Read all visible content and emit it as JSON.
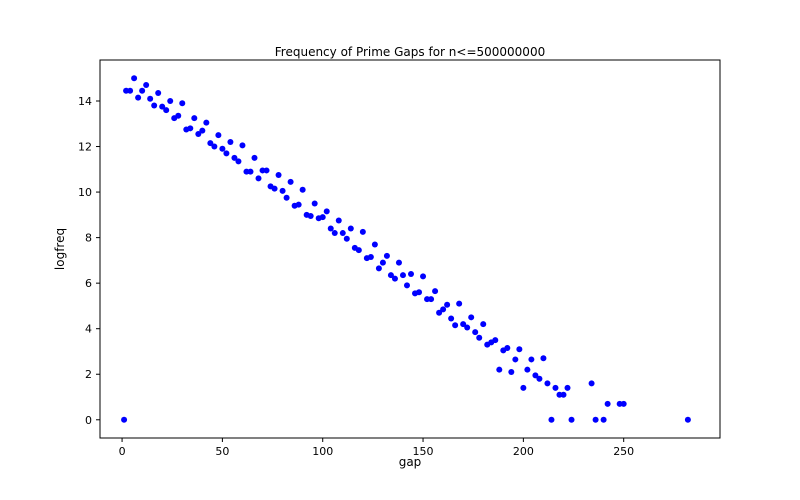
{
  "chart_data": {
    "type": "scatter",
    "title": "Frequency of Prime Gaps for n<=500000000",
    "xlabel": "gap",
    "ylabel": "logfreq",
    "xlim": [
      -11,
      298
    ],
    "ylim": [
      -0.8,
      15.8
    ],
    "xticks": [
      0,
      50,
      100,
      150,
      200,
      250
    ],
    "yticks": [
      0,
      2,
      4,
      6,
      8,
      10,
      12,
      14
    ],
    "grid": false,
    "marker_color": "#0000ff",
    "points": [
      [
        1,
        0.0
      ],
      [
        2,
        14.45
      ],
      [
        4,
        14.45
      ],
      [
        6,
        15.0
      ],
      [
        8,
        14.15
      ],
      [
        10,
        14.45
      ],
      [
        12,
        14.7
      ],
      [
        14,
        14.1
      ],
      [
        16,
        13.8
      ],
      [
        18,
        14.35
      ],
      [
        20,
        13.75
      ],
      [
        22,
        13.6
      ],
      [
        24,
        14.0
      ],
      [
        26,
        13.25
      ],
      [
        28,
        13.35
      ],
      [
        30,
        13.9
      ],
      [
        32,
        12.75
      ],
      [
        34,
        12.8
      ],
      [
        36,
        13.25
      ],
      [
        38,
        12.55
      ],
      [
        40,
        12.7
      ],
      [
        42,
        13.05
      ],
      [
        44,
        12.15
      ],
      [
        46,
        12.0
      ],
      [
        48,
        12.5
      ],
      [
        50,
        11.9
      ],
      [
        52,
        11.7
      ],
      [
        54,
        12.2
      ],
      [
        56,
        11.5
      ],
      [
        58,
        11.35
      ],
      [
        60,
        12.05
      ],
      [
        62,
        10.9
      ],
      [
        64,
        10.9
      ],
      [
        66,
        11.5
      ],
      [
        68,
        10.6
      ],
      [
        70,
        10.95
      ],
      [
        72,
        10.95
      ],
      [
        74,
        10.25
      ],
      [
        76,
        10.15
      ],
      [
        78,
        10.75
      ],
      [
        80,
        10.05
      ],
      [
        82,
        9.75
      ],
      [
        84,
        10.45
      ],
      [
        86,
        9.4
      ],
      [
        88,
        9.45
      ],
      [
        90,
        10.1
      ],
      [
        92,
        9.0
      ],
      [
        94,
        8.95
      ],
      [
        96,
        9.5
      ],
      [
        98,
        8.85
      ],
      [
        100,
        8.9
      ],
      [
        102,
        9.15
      ],
      [
        104,
        8.4
      ],
      [
        106,
        8.2
      ],
      [
        108,
        8.75
      ],
      [
        110,
        8.2
      ],
      [
        112,
        7.95
      ],
      [
        114,
        8.4
      ],
      [
        116,
        7.55
      ],
      [
        118,
        7.45
      ],
      [
        120,
        8.25
      ],
      [
        122,
        7.1
      ],
      [
        124,
        7.15
      ],
      [
        126,
        7.7
      ],
      [
        128,
        6.65
      ],
      [
        130,
        6.9
      ],
      [
        132,
        7.2
      ],
      [
        134,
        6.35
      ],
      [
        136,
        6.2
      ],
      [
        138,
        6.9
      ],
      [
        140,
        6.35
      ],
      [
        142,
        5.9
      ],
      [
        144,
        6.4
      ],
      [
        146,
        5.55
      ],
      [
        148,
        5.6
      ],
      [
        150,
        6.3
      ],
      [
        152,
        5.3
      ],
      [
        154,
        5.3
      ],
      [
        156,
        5.65
      ],
      [
        158,
        4.7
      ],
      [
        160,
        4.85
      ],
      [
        162,
        5.05
      ],
      [
        164,
        4.45
      ],
      [
        166,
        4.15
      ],
      [
        168,
        5.1
      ],
      [
        170,
        4.2
      ],
      [
        172,
        4.05
      ],
      [
        174,
        4.5
      ],
      [
        176,
        3.85
      ],
      [
        178,
        3.6
      ],
      [
        180,
        4.2
      ],
      [
        182,
        3.3
      ],
      [
        184,
        3.4
      ],
      [
        186,
        3.5
      ],
      [
        188,
        2.2
      ],
      [
        190,
        3.05
      ],
      [
        192,
        3.15
      ],
      [
        194,
        2.1
      ],
      [
        196,
        2.65
      ],
      [
        198,
        3.1
      ],
      [
        200,
        1.4
      ],
      [
        202,
        2.2
      ],
      [
        204,
        2.65
      ],
      [
        206,
        1.95
      ],
      [
        208,
        1.8
      ],
      [
        210,
        2.7
      ],
      [
        212,
        1.6
      ],
      [
        214,
        0.0
      ],
      [
        216,
        1.4
      ],
      [
        218,
        1.1
      ],
      [
        220,
        1.1
      ],
      [
        222,
        1.4
      ],
      [
        224,
        0.0
      ],
      [
        234,
        1.6
      ],
      [
        236,
        0.0
      ],
      [
        240,
        0.0
      ],
      [
        242,
        0.7
      ],
      [
        248,
        0.7
      ],
      [
        250,
        0.7
      ],
      [
        282,
        0.0
      ]
    ]
  }
}
